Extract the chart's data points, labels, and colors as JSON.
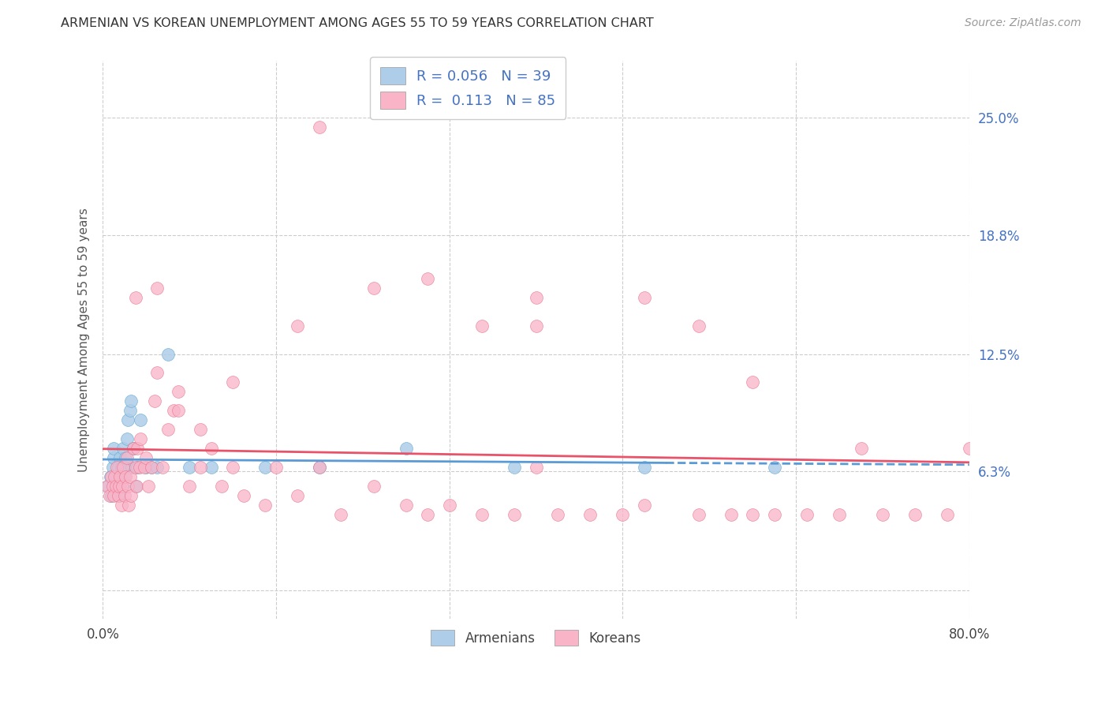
{
  "title": "ARMENIAN VS KOREAN UNEMPLOYMENT AMONG AGES 55 TO 59 YEARS CORRELATION CHART",
  "source": "Source: ZipAtlas.com",
  "ylabel": "Unemployment Among Ages 55 to 59 years",
  "xlim": [
    0.0,
    0.8
  ],
  "ylim": [
    -0.015,
    0.28
  ],
  "yticks": [
    0.0,
    0.063,
    0.125,
    0.188,
    0.25
  ],
  "ytick_labels": [
    "",
    "6.3%",
    "12.5%",
    "18.8%",
    "25.0%"
  ],
  "xticks": [
    0.0,
    0.16,
    0.32,
    0.48,
    0.64,
    0.8
  ],
  "xtick_labels": [
    "0.0%",
    "",
    "",
    "",
    "",
    "80.0%"
  ],
  "armenian_scatter_color": "#aecde8",
  "armenian_edge_color": "#6aaed6",
  "korean_scatter_color": "#f9b4c8",
  "korean_edge_color": "#e8728a",
  "armenian_line_color": "#5b9bd5",
  "korean_line_color": "#e8536a",
  "R_armenian": 0.056,
  "N_armenian": 39,
  "R_korean": 0.113,
  "N_korean": 85,
  "armenian_x": [
    0.005,
    0.007,
    0.008,
    0.009,
    0.01,
    0.01,
    0.012,
    0.013,
    0.014,
    0.015,
    0.015,
    0.016,
    0.017,
    0.018,
    0.019,
    0.02,
    0.02,
    0.021,
    0.022,
    0.023,
    0.025,
    0.026,
    0.027,
    0.028,
    0.03,
    0.032,
    0.035,
    0.04,
    0.045,
    0.05,
    0.06,
    0.08,
    0.1,
    0.15,
    0.2,
    0.28,
    0.38,
    0.5,
    0.62
  ],
  "armenian_y": [
    0.055,
    0.06,
    0.05,
    0.065,
    0.07,
    0.075,
    0.06,
    0.055,
    0.065,
    0.05,
    0.06,
    0.07,
    0.065,
    0.055,
    0.075,
    0.06,
    0.065,
    0.07,
    0.08,
    0.09,
    0.095,
    0.1,
    0.065,
    0.075,
    0.055,
    0.065,
    0.09,
    0.065,
    0.065,
    0.065,
    0.125,
    0.065,
    0.065,
    0.065,
    0.065,
    0.075,
    0.065,
    0.065,
    0.065
  ],
  "korean_x": [
    0.004,
    0.006,
    0.008,
    0.009,
    0.01,
    0.011,
    0.012,
    0.013,
    0.014,
    0.015,
    0.016,
    0.017,
    0.018,
    0.019,
    0.02,
    0.021,
    0.022,
    0.023,
    0.024,
    0.025,
    0.026,
    0.028,
    0.03,
    0.031,
    0.032,
    0.034,
    0.035,
    0.038,
    0.04,
    0.042,
    0.045,
    0.048,
    0.05,
    0.055,
    0.06,
    0.065,
    0.07,
    0.08,
    0.09,
    0.1,
    0.11,
    0.12,
    0.13,
    0.15,
    0.16,
    0.18,
    0.2,
    0.22,
    0.25,
    0.28,
    0.3,
    0.32,
    0.35,
    0.38,
    0.4,
    0.42,
    0.45,
    0.48,
    0.5,
    0.55,
    0.58,
    0.6,
    0.62,
    0.65,
    0.68,
    0.7,
    0.72,
    0.75,
    0.78,
    0.8,
    0.03,
    0.05,
    0.07,
    0.09,
    0.12,
    0.18,
    0.25,
    0.35,
    0.4,
    0.55,
    0.2,
    0.3,
    0.4,
    0.5,
    0.6
  ],
  "korean_y": [
    0.055,
    0.05,
    0.06,
    0.055,
    0.05,
    0.06,
    0.055,
    0.065,
    0.05,
    0.055,
    0.06,
    0.045,
    0.055,
    0.065,
    0.05,
    0.06,
    0.07,
    0.055,
    0.045,
    0.06,
    0.05,
    0.075,
    0.065,
    0.055,
    0.075,
    0.065,
    0.08,
    0.065,
    0.07,
    0.055,
    0.065,
    0.1,
    0.115,
    0.065,
    0.085,
    0.095,
    0.095,
    0.055,
    0.065,
    0.075,
    0.055,
    0.065,
    0.05,
    0.045,
    0.065,
    0.05,
    0.065,
    0.04,
    0.055,
    0.045,
    0.04,
    0.045,
    0.04,
    0.04,
    0.065,
    0.04,
    0.04,
    0.04,
    0.045,
    0.04,
    0.04,
    0.04,
    0.04,
    0.04,
    0.04,
    0.075,
    0.04,
    0.04,
    0.04,
    0.075,
    0.155,
    0.16,
    0.105,
    0.085,
    0.11,
    0.14,
    0.16,
    0.14,
    0.155,
    0.14,
    0.245,
    0.165,
    0.14,
    0.155,
    0.11
  ]
}
